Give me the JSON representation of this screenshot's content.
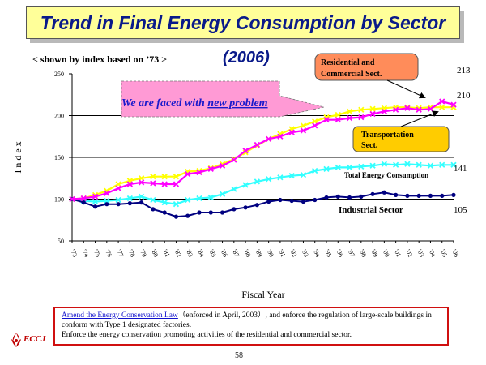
{
  "title": "Trend in Final Energy Consumption by Sector",
  "subtitle": "< shown by index based on ’73 >",
  "year_label": "(2006)",
  "page_number": "58",
  "logo_text": "ECCJ",
  "notes": {
    "link_text": "Amend the Energy Conservation Law",
    "line1_rest": "（enforced in April, 2003）, and enforce the regulation of  large-scale buildings in conform with Type 1 designated factories.",
    "line2": "Enforce the energy conservation promoting activities  of the residential and commercial sector."
  },
  "colors": {
    "residential": "#ff00ff",
    "transportation": "#ffff00",
    "total": "#33ffff",
    "industrial": "#000080",
    "title_text": "#0a1a8a",
    "callout_residential": "#ff8c5a",
    "callout_transport": "#ffcc00",
    "banner": "#ff9ad5"
  },
  "chart_data": {
    "type": "line",
    "title": "Trend in Final Energy Consumption by Sector",
    "xlabel": "Fiscal Year",
    "ylabel": "I n d e x",
    "ylim": [
      50,
      250
    ],
    "yticks": [
      50,
      100,
      150,
      200,
      250
    ],
    "gridlines": [
      100,
      150,
      200
    ],
    "categories": [
      "'73",
      "'74",
      "'75",
      "'76",
      "'77",
      "'78",
      "'79",
      "'80",
      "'81",
      "'82",
      "'83",
      "'84",
      "'85",
      "'86",
      "'87",
      "'88",
      "'89",
      "'90",
      "'91",
      "'92",
      "'93",
      "'94",
      "'95",
      "'96",
      "'97",
      "'98",
      "'99",
      "'00",
      "'01",
      "'02",
      "'03",
      "'04",
      "'05",
      "'06"
    ],
    "series": [
      {
        "name": "Residential and Commercial Sect.",
        "key": "residential",
        "end_label": "213",
        "values": [
          100,
          101,
          103,
          107,
          113,
          118,
          120,
          119,
          118,
          118,
          130,
          132,
          136,
          140,
          147,
          158,
          165,
          172,
          175,
          180,
          182,
          188,
          195,
          195,
          197,
          198,
          202,
          205,
          207,
          209,
          207,
          208,
          217,
          213
        ]
      },
      {
        "name": "Transportation Sect.",
        "key": "transportation",
        "end_label": "210",
        "values": [
          100,
          101,
          105,
          110,
          118,
          122,
          125,
          127,
          127,
          127,
          133,
          134,
          137,
          142,
          148,
          156,
          164,
          172,
          178,
          184,
          188,
          193,
          198,
          201,
          205,
          207,
          208,
          209,
          210,
          210,
          209,
          210,
          210,
          210
        ]
      },
      {
        "name": "Total Energy Consumption",
        "key": "total",
        "end_label": "141",
        "values": [
          100,
          98,
          97,
          98,
          99,
          101,
          103,
          99,
          96,
          94,
          99,
          101,
          102,
          106,
          112,
          117,
          121,
          124,
          126,
          128,
          129,
          134,
          136,
          138,
          138,
          139,
          140,
          142,
          141,
          142,
          141,
          140,
          141,
          141
        ]
      },
      {
        "name": "Industrial Sector",
        "key": "industrial",
        "end_label": "105",
        "values": [
          100,
          96,
          91,
          94,
          94,
          95,
          96,
          88,
          84,
          79,
          80,
          84,
          84,
          84,
          88,
          90,
          93,
          97,
          99,
          98,
          97,
          99,
          102,
          103,
          102,
          103,
          106,
          108,
          105,
          104,
          104,
          104,
          104,
          105
        ]
      }
    ],
    "annotations": {
      "banner_prefix": "We are faced with ",
      "banner_emph": "new problem",
      "residential_callout": "Residential and Commercial Sect.",
      "transport_callout": "Transportation Sect.",
      "total_label": "Total Energy Consumption",
      "industrial_label": "Industrial Sector"
    }
  }
}
